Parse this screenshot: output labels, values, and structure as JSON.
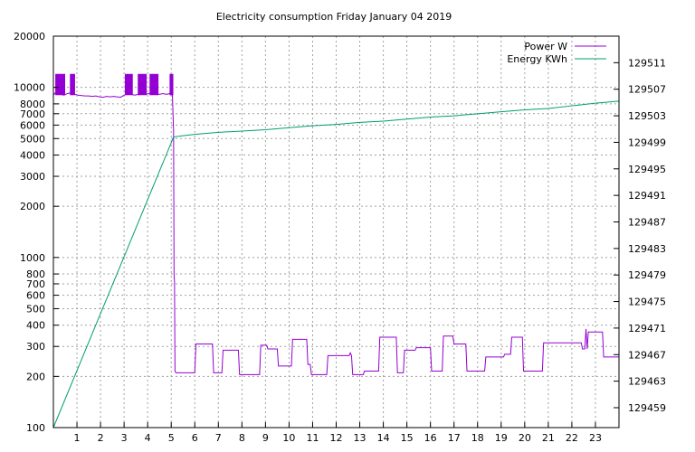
{
  "chart_data": {
    "type": "line",
    "title": "Electricity consumption Friday January 04 2019",
    "xlabel": "",
    "ylabel": "",
    "y2label": "",
    "xlim": [
      0,
      24
    ],
    "ylim": [
      100,
      20000
    ],
    "y_scale": "log",
    "y2lim": [
      129456,
      129515
    ],
    "grid": true,
    "legend_position": "top-right",
    "x_ticks": [
      1,
      2,
      3,
      4,
      5,
      6,
      7,
      8,
      9,
      10,
      11,
      12,
      13,
      14,
      15,
      16,
      17,
      18,
      19,
      20,
      21,
      22,
      23
    ],
    "y_ticks": [
      100,
      200,
      300,
      400,
      500,
      600,
      700,
      800,
      1000,
      2000,
      3000,
      4000,
      5000,
      6000,
      7000,
      8000,
      10000,
      20000
    ],
    "y2_ticks": [
      129459,
      129463,
      129467,
      129471,
      129475,
      129479,
      129483,
      129487,
      129491,
      129495,
      129499,
      129503,
      129507,
      129511
    ],
    "series": [
      {
        "name": "Power W",
        "axis": "y",
        "color": "#9400d3",
        "x": [
          0.0,
          0.08,
          0.15,
          0.3,
          0.45,
          0.6,
          0.75,
          0.9,
          1.05,
          1.2,
          1.35,
          1.5,
          1.65,
          1.8,
          1.95,
          2.1,
          2.25,
          2.4,
          2.55,
          2.7,
          2.85,
          3.0,
          3.15,
          3.3,
          3.45,
          3.6,
          3.75,
          3.9,
          4.05,
          4.2,
          4.35,
          4.5,
          4.65,
          4.8,
          4.95,
          5.05,
          5.1,
          5.12,
          5.14,
          5.16,
          5.2,
          5.4,
          6.0,
          6.05,
          6.75,
          6.8,
          7.15,
          7.2,
          7.85,
          7.9,
          8.75,
          8.8,
          9.05,
          9.1,
          9.5,
          9.55,
          10.1,
          10.15,
          10.75,
          10.8,
          10.9,
          10.95,
          11.6,
          11.65,
          12.55,
          12.6,
          12.65,
          12.7,
          13.15,
          13.2,
          13.8,
          13.85,
          14.55,
          14.6,
          14.85,
          14.9,
          15.35,
          15.4,
          16.0,
          16.05,
          16.5,
          16.55,
          16.95,
          17.0,
          17.5,
          17.55,
          18.3,
          18.35,
          18.75,
          18.8,
          19.1,
          19.15,
          19.4,
          19.45,
          19.9,
          19.95,
          20.75,
          20.8,
          22.4,
          22.45,
          22.55,
          22.6,
          22.65,
          22.7,
          23.3,
          23.35,
          24.0
        ],
        "values": [
          9000,
          9300,
          9200,
          9100,
          9000,
          9200,
          9300,
          9100,
          9000,
          8950,
          8900,
          8900,
          8850,
          8900,
          8800,
          8750,
          8850,
          8800,
          8850,
          8800,
          8750,
          9000,
          9200,
          9100,
          9000,
          9100,
          9200,
          9100,
          9200,
          9100,
          9200,
          9100,
          9200,
          9100,
          9200,
          9000,
          5500,
          800,
          720,
          215,
          210,
          210,
          210,
          310,
          310,
          210,
          210,
          285,
          285,
          205,
          205,
          305,
          305,
          290,
          290,
          230,
          230,
          330,
          330,
          235,
          235,
          205,
          205,
          265,
          265,
          275,
          265,
          205,
          205,
          215,
          215,
          340,
          340,
          210,
          210,
          285,
          285,
          295,
          295,
          215,
          215,
          345,
          345,
          310,
          310,
          215,
          215,
          260,
          260,
          260,
          260,
          270,
          270,
          340,
          340,
          215,
          215,
          315,
          315,
          290,
          290,
          380,
          290,
          365,
          365,
          260,
          260
        ]
      },
      {
        "name": "Energy KWh",
        "axis": "y2",
        "color": "#009e73",
        "x": [
          0.0,
          5.1,
          5.5,
          6.0,
          7.0,
          8.0,
          9.0,
          10.0,
          11.0,
          12.0,
          13.0,
          14.0,
          15.0,
          16.0,
          17.0,
          18.0,
          19.0,
          20.0,
          21.0,
          22.0,
          23.0,
          24.0
        ],
        "values": [
          129456.0,
          129499.8,
          129500.0,
          129500.2,
          129500.5,
          129500.7,
          129500.9,
          129501.2,
          129501.5,
          129501.7,
          129502.0,
          129502.2,
          129502.5,
          129502.8,
          129503.0,
          129503.3,
          129503.6,
          129503.9,
          129504.1,
          129504.5,
          129504.9,
          129505.2
        ]
      }
    ]
  }
}
